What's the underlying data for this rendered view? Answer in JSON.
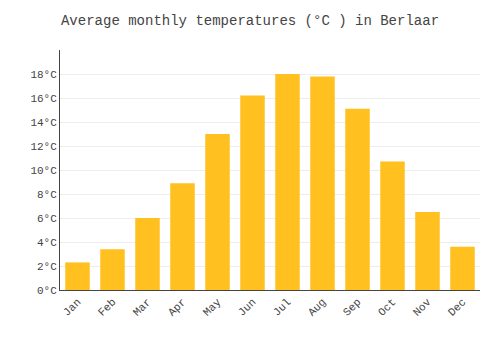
{
  "chart_data": {
    "type": "bar",
    "title": "Average monthly temperatures (°C ) in Berlaar",
    "categories": [
      "Jan",
      "Feb",
      "Mar",
      "Apr",
      "May",
      "Jun",
      "Jul",
      "Aug",
      "Sep",
      "Oct",
      "Nov",
      "Dec"
    ],
    "values": [
      2.3,
      3.4,
      6.0,
      8.9,
      13.0,
      16.2,
      18.0,
      17.8,
      15.1,
      10.7,
      6.5,
      3.6
    ],
    "color": "#FFC020",
    "ylim": [
      0,
      20
    ],
    "yticks": [
      {
        "value": 0,
        "label": "0°C"
      },
      {
        "value": 2,
        "label": "2°C"
      },
      {
        "value": 4,
        "label": "4°C"
      },
      {
        "value": 6,
        "label": "6°C"
      },
      {
        "value": 8,
        "label": "8°C"
      },
      {
        "value": 10,
        "label": "10°C"
      },
      {
        "value": 12,
        "label": "12°C"
      },
      {
        "value": 14,
        "label": "14°C"
      },
      {
        "value": 16,
        "label": "16°C"
      },
      {
        "value": 18,
        "label": "18°C"
      }
    ],
    "grid": true
  }
}
